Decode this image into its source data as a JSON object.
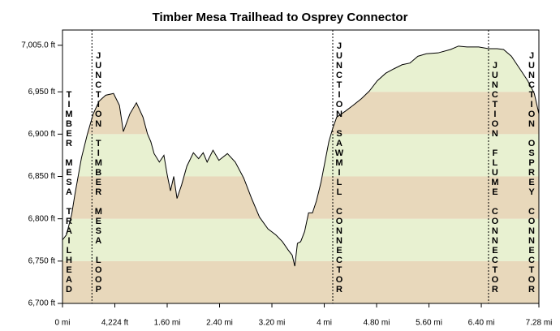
{
  "chart_data": {
    "type": "elevation-profile",
    "title": "Timber Mesa Trailhead to Osprey Connector",
    "x": [
      0,
      0.06,
      0.14,
      0.19,
      0.29,
      0.38,
      0.47,
      0.56,
      0.66,
      0.78,
      0.87,
      0.93,
      1.03,
      1.13,
      1.23,
      1.3,
      1.35,
      1.4,
      1.48,
      1.55,
      1.6,
      1.65,
      1.7,
      1.75,
      1.82,
      1.9,
      2.0,
      2.08,
      2.15,
      2.21,
      2.3,
      2.39,
      2.52,
      2.64,
      2.77,
      2.89,
      3.01,
      3.14,
      3.26,
      3.36,
      3.45,
      3.51,
      3.55,
      3.59,
      3.64,
      3.7,
      3.76,
      3.82,
      3.88,
      3.95,
      4.01,
      4.07,
      4.13,
      4.19,
      4.32,
      4.44,
      4.57,
      4.69,
      4.81,
      4.94,
      5.06,
      5.19,
      5.31,
      5.43,
      5.56,
      5.74,
      5.93,
      6.05,
      6.18,
      6.36,
      6.51,
      6.64,
      6.74,
      6.86,
      6.99,
      7.11,
      7.21,
      7.28
    ],
    "values": [
      6775,
      6781,
      6805,
      6829,
      6872,
      6900,
      6924,
      6939,
      6946,
      6948,
      6934,
      6903,
      6924,
      6937,
      6920,
      6900,
      6891,
      6877,
      6867,
      6875,
      6852,
      6833,
      6850,
      6824,
      6840,
      6862,
      6878,
      6871,
      6878,
      6867,
      6881,
      6869,
      6877,
      6867,
      6848,
      6824,
      6802,
      6788,
      6781,
      6773,
      6763,
      6757,
      6744,
      6771,
      6773,
      6785,
      6807,
      6807,
      6821,
      6843,
      6867,
      6891,
      6907,
      6920,
      6927,
      6934,
      6942,
      6951,
      6963,
      6972,
      6977,
      6982,
      6984,
      6992,
      6995,
      6996,
      7000,
      7004,
      7003,
      7003,
      7001,
      7001,
      7000,
      6992,
      6977,
      6963,
      6948,
      6924
    ],
    "color": "#000000",
    "band_colors": [
      "#e8d8bb",
      "#e8f1d1"
    ],
    "xlim": [
      0,
      7.28
    ],
    "xticks": [
      {
        "value": 0,
        "label": "0 mi"
      },
      {
        "value": 0.8,
        "label": "4,224 ft"
      },
      {
        "value": 1.6,
        "label": "1.60 mi"
      },
      {
        "value": 2.4,
        "label": "2.40 mi"
      },
      {
        "value": 3.2,
        "label": "3.20 mi"
      },
      {
        "value": 4,
        "label": "4 mi"
      },
      {
        "value": 4.8,
        "label": "4.80 mi"
      },
      {
        "value": 5.6,
        "label": "5.60 mi"
      },
      {
        "value": 6.4,
        "label": "6.40 mi"
      },
      {
        "value": 7.28,
        "label": "7.28 mi"
      }
    ],
    "ylim": [
      6700,
      7023
    ],
    "yticks": [
      {
        "value": 6700,
        "label": "6,700 ft"
      },
      {
        "value": 6750,
        "label": "6,750 ft"
      },
      {
        "value": 6800,
        "label": "6,800 ft"
      },
      {
        "value": 6850,
        "label": "6,850 ft"
      },
      {
        "value": 6900,
        "label": "6,900 ft"
      },
      {
        "value": 6950,
        "label": "6,950 ft"
      },
      {
        "value": 7005,
        "label": "7,005.0 ft"
      }
    ],
    "markers": [
      {
        "x": 0,
        "label": "TIMBER MESA TRAILHEAD"
      },
      {
        "x": 0.45,
        "label": "JUNCTION TIMBER MESA LOOP"
      },
      {
        "x": 4.13,
        "label": "JUNCTION SAWMILL CONNECTOR"
      },
      {
        "x": 6.51,
        "label": "JUNCTION FLUME CONNECTOR"
      },
      {
        "x": 7.28,
        "label": "JUNCTION OSPREY CONNECTOR"
      }
    ]
  }
}
